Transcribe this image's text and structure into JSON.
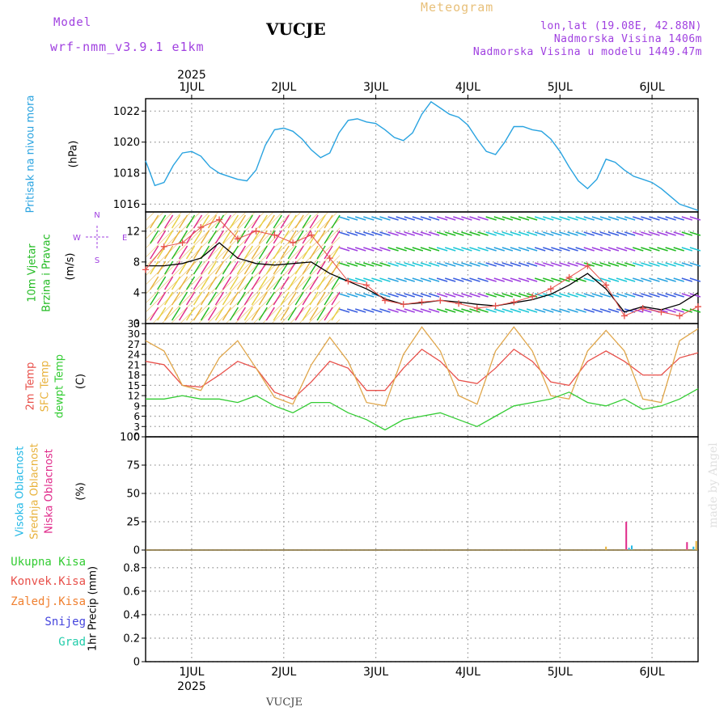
{
  "header": {
    "model_label": "Model",
    "model_name": "wrf-nmm_v3.9.1 e1km",
    "station": "VUCJE",
    "title": "Meteogram",
    "lonlat": "lon,lat (19.08E, 42.88N)",
    "elevation": "Nadmorska Visina 1406m",
    "model_elevation": "Nadmorska Visina u modelu 1449.47m"
  },
  "footer": {
    "station": "VUCJE",
    "credit": "made by Angel"
  },
  "colors": {
    "pressure": "#29a3e0",
    "wind_label": "#22bb22",
    "temp2m": "#e8504a",
    "sfc": "#e0a64a",
    "dew": "#33cc33",
    "high_cloud": "#22b8e6",
    "mid_cloud": "#e8b23c",
    "low_cloud": "#e0298a",
    "total_precip": "#33cc33",
    "conv_precip": "#e8504a",
    "frozen": "#f08030",
    "snow": "#4444dd",
    "hail": "#22ccaa",
    "purple": "#a040e0",
    "orange": "#e8b23c"
  },
  "chart_data": [
    {
      "panel": "pressure",
      "type": "line",
      "title": "Pritisak na nivou mora",
      "ylabel": "(hPa)",
      "yticks": [
        "1016",
        "1018",
        "1020",
        "1022"
      ],
      "ylim": [
        1015.5,
        1022.8
      ],
      "xticks_top": [
        "1JUL",
        "2JUL",
        "3JUL",
        "4JUL",
        "5JUL",
        "6JUL"
      ],
      "year": "2025",
      "xlim_days": [
        0.5,
        6.5
      ],
      "series": [
        {
          "x": [
            0.5,
            0.6,
            0.7,
            0.8,
            0.9,
            1.0,
            1.1,
            1.2,
            1.3,
            1.4,
            1.5,
            1.6,
            1.7,
            1.8,
            1.9,
            2.0,
            2.1,
            2.2,
            2.3,
            2.4,
            2.5,
            2.6,
            2.7,
            2.8,
            2.9,
            3.0,
            3.1,
            3.2,
            3.3,
            3.4,
            3.5,
            3.6,
            3.7,
            3.8,
            3.9,
            4.0,
            4.1,
            4.2,
            4.3,
            4.4,
            4.5,
            4.6,
            4.7,
            4.8,
            4.9,
            5.0,
            5.1,
            5.2,
            5.3,
            5.4,
            5.5,
            5.6,
            5.7,
            5.8,
            5.9,
            6.0,
            6.1,
            6.2,
            6.3,
            6.4,
            6.5
          ],
          "values": [
            1018.8,
            1017.2,
            1017.4,
            1018.5,
            1019.3,
            1019.4,
            1019.1,
            1018.4,
            1018.0,
            1017.8,
            1017.6,
            1017.5,
            1018.2,
            1019.8,
            1020.8,
            1020.9,
            1020.7,
            1020.2,
            1019.5,
            1019.0,
            1019.3,
            1020.6,
            1021.4,
            1021.5,
            1021.3,
            1021.2,
            1020.8,
            1020.3,
            1020.1,
            1020.6,
            1021.8,
            1022.6,
            1022.2,
            1021.8,
            1021.6,
            1021.1,
            1020.2,
            1019.4,
            1019.2,
            1020.0,
            1021.0,
            1021.0,
            1020.8,
            1020.7,
            1020.2,
            1019.4,
            1018.4,
            1017.5,
            1017.0,
            1017.6,
            1018.9,
            1018.7,
            1018.2,
            1017.8,
            1017.6,
            1017.4,
            1017.0,
            1016.5,
            1016.0,
            1015.8,
            1015.6
          ]
        }
      ]
    },
    {
      "panel": "wind",
      "type": "line",
      "title_lines": [
        "10m Vjetar",
        "Brzina i Pravac"
      ],
      "ylabel": "(m/s)",
      "compass": [
        "W",
        "E",
        "N",
        "S"
      ],
      "yticks": [
        "0",
        "4",
        "8",
        "12"
      ],
      "ylim": [
        0,
        14.5
      ],
      "series": [
        {
          "name": "speed",
          "x": [
            0.5,
            0.7,
            0.9,
            1.1,
            1.3,
            1.5,
            1.7,
            1.9,
            2.1,
            2.3,
            2.5,
            2.7,
            2.9,
            3.1,
            3.3,
            3.5,
            3.7,
            3.9,
            4.1,
            4.3,
            4.5,
            4.7,
            4.9,
            5.1,
            5.3,
            5.5,
            5.7,
            5.9,
            6.1,
            6.3,
            6.5
          ],
          "values": [
            7.5,
            7.5,
            7.8,
            8.5,
            10.5,
            8.5,
            7.8,
            7.6,
            7.8,
            8.0,
            6.5,
            5.5,
            4.5,
            3.2,
            2.5,
            2.7,
            3.0,
            2.8,
            2.5,
            2.3,
            2.7,
            3.1,
            3.8,
            5.0,
            6.5,
            4.5,
            1.5,
            2.2,
            1.8,
            2.5,
            4.0
          ]
        },
        {
          "name": "gust",
          "x": [
            0.5,
            0.7,
            0.9,
            1.1,
            1.3,
            1.5,
            1.7,
            1.9,
            2.1,
            2.3,
            2.5,
            2.7,
            2.9,
            3.1,
            3.3,
            3.5,
            3.7,
            3.9,
            4.1,
            4.3,
            4.5,
            4.7,
            4.9,
            5.1,
            5.3,
            5.5,
            5.7,
            5.9,
            6.1,
            6.3,
            6.5
          ],
          "values": [
            7.0,
            10.0,
            10.5,
            12.5,
            13.5,
            11.0,
            12.0,
            11.5,
            10.5,
            11.5,
            8.5,
            5.5,
            5.0,
            3.0,
            2.5,
            2.8,
            3.0,
            2.6,
            2.0,
            2.3,
            2.8,
            3.5,
            4.5,
            6.0,
            7.5,
            5.0,
            1.0,
            2.0,
            1.5,
            1.0,
            2.2
          ]
        }
      ]
    },
    {
      "panel": "temperature",
      "type": "line",
      "title_lines": [
        "2m Temp",
        "SFC Temp",
        "dewpt Temp"
      ],
      "ylabel": "(C)",
      "yticks": [
        "0",
        "3",
        "6",
        "9",
        "12",
        "15",
        "18",
        "21",
        "24",
        "27",
        "30",
        "33"
      ],
      "ylim": [
        0,
        33
      ],
      "series": [
        {
          "name": "2m Temp",
          "x": [
            0.5,
            0.7,
            0.9,
            1.1,
            1.3,
            1.5,
            1.7,
            1.9,
            2.1,
            2.3,
            2.5,
            2.7,
            2.9,
            3.1,
            3.3,
            3.5,
            3.7,
            3.9,
            4.1,
            4.3,
            4.5,
            4.7,
            4.9,
            5.1,
            5.3,
            5.5,
            5.7,
            5.9,
            6.1,
            6.3,
            6.5
          ],
          "values": [
            22,
            21,
            15,
            14.5,
            18,
            22,
            20,
            13,
            11,
            16,
            22,
            20,
            13.5,
            13.5,
            20,
            25.5,
            22,
            16.5,
            15.5,
            20,
            25.5,
            22,
            16,
            15,
            22,
            25,
            22,
            18,
            18,
            23,
            24.5
          ]
        },
        {
          "name": "SFC Temp",
          "x": [
            0.5,
            0.7,
            0.9,
            1.1,
            1.3,
            1.5,
            1.7,
            1.9,
            2.1,
            2.3,
            2.5,
            2.7,
            2.9,
            3.1,
            3.3,
            3.5,
            3.7,
            3.9,
            4.1,
            4.3,
            4.5,
            4.7,
            4.9,
            5.1,
            5.3,
            5.5,
            5.7,
            5.9,
            6.1,
            6.3,
            6.5
          ],
          "values": [
            28,
            25,
            15,
            13.5,
            23,
            28,
            20,
            11.5,
            9.5,
            21,
            29,
            22,
            10,
            9,
            24,
            32,
            25,
            12,
            9.5,
            25,
            32,
            25,
            12,
            11,
            25,
            31,
            25,
            11,
            10,
            28,
            31.5
          ]
        },
        {
          "name": "dewpt Temp",
          "x": [
            0.5,
            0.7,
            0.9,
            1.1,
            1.3,
            1.5,
            1.7,
            1.9,
            2.1,
            2.3,
            2.5,
            2.7,
            2.9,
            3.1,
            3.3,
            3.5,
            3.7,
            3.9,
            4.1,
            4.3,
            4.5,
            4.7,
            4.9,
            5.1,
            5.3,
            5.5,
            5.7,
            5.9,
            6.1,
            6.3,
            6.5
          ],
          "values": [
            11,
            11,
            12,
            11,
            11,
            10,
            12,
            9,
            7,
            10,
            10,
            7,
            5,
            2,
            5,
            6,
            7,
            5,
            3,
            6,
            9,
            10,
            11,
            13,
            10,
            9,
            11,
            8,
            9,
            11,
            14
          ]
        }
      ]
    },
    {
      "panel": "clouds",
      "type": "bar",
      "title_lines": [
        "Visoka Oblacnost",
        "Srednja Oblacnost",
        "Niska Oblacnost"
      ],
      "ylabel": "(%)",
      "yticks": [
        "0",
        "25",
        "50",
        "75",
        "100"
      ],
      "ylim": [
        0,
        100
      ],
      "series": [
        {
          "name": "Visoka Oblacnost",
          "x": [
            5.75,
            5.78,
            6.45
          ],
          "values": [
            2,
            4,
            3
          ]
        },
        {
          "name": "Srednja Oblacnost",
          "x": [
            5.5,
            6.48
          ],
          "values": [
            3,
            8
          ]
        },
        {
          "name": "Niska Oblacnost",
          "x": [
            5.72,
            6.38
          ],
          "values": [
            25,
            7
          ]
        }
      ]
    },
    {
      "panel": "precip",
      "type": "line",
      "title_lines": [
        "Ukupna Kisa",
        "Konvek.Kisa",
        "Zaledj.Kisa",
        "Snijeg",
        "Grad"
      ],
      "ylabel": "1hr Precip (mm)",
      "yticks": [
        "0",
        "0.2",
        "0.4",
        "0.6",
        "0.8"
      ],
      "ylim": [
        0,
        0.95
      ],
      "xticks_bottom": [
        "1JUL",
        "2JUL",
        "3JUL",
        "4JUL",
        "5JUL",
        "6JUL"
      ],
      "year": "2025",
      "series": []
    }
  ]
}
